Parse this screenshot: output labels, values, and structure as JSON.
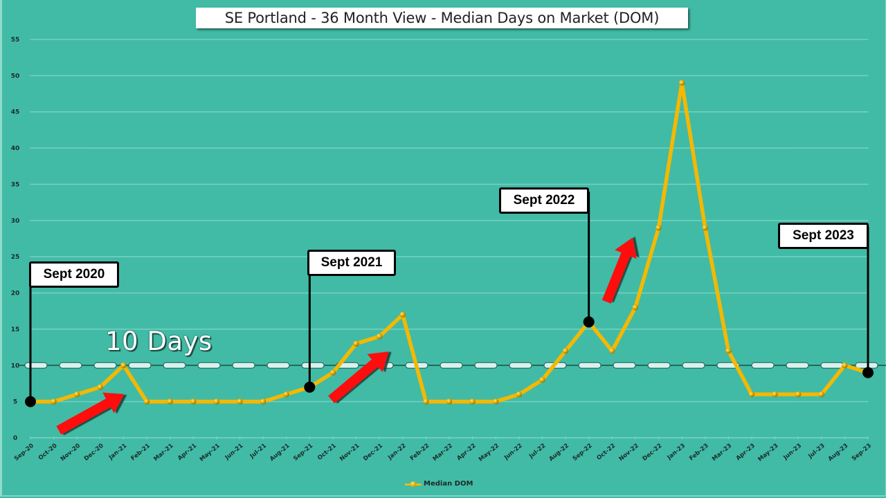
{
  "chart_data": {
    "type": "line",
    "title": "SE Portland - 36 Month View - Median Days on Market (DOM)",
    "xlabel": "",
    "ylabel": "",
    "ylim": [
      0,
      55
    ],
    "yticks": [
      0,
      5,
      10,
      15,
      20,
      25,
      30,
      35,
      40,
      45,
      50,
      55
    ],
    "grid": true,
    "legend_position": "bottom",
    "categories": [
      "Sep-20",
      "Oct-20",
      "Nov-20",
      "Dec-20",
      "Jan-21",
      "Feb-21",
      "Mar-21",
      "Apr-21",
      "May-21",
      "Jun-21",
      "Jul-21",
      "Aug-21",
      "Sep-21",
      "Oct-21",
      "Nov-21",
      "Dec-21",
      "Jan-22",
      "Feb-22",
      "Mar-22",
      "Apr-22",
      "May-22",
      "Jun-22",
      "Jul-22",
      "Aug-22",
      "Sep-22",
      "Oct-22",
      "Nov-22",
      "Dec-22",
      "Jan-23",
      "Feb-23",
      "Mar-23",
      "Apr-23",
      "May-23",
      "Jun-23",
      "Jul-23",
      "Aug-23",
      "Sep-23"
    ],
    "series": [
      {
        "name": "Median DOM",
        "color": "#f5b800",
        "values": [
          5,
          5,
          6,
          7,
          10,
          5,
          5,
          5,
          5,
          5,
          5,
          6,
          7,
          9,
          13,
          14,
          17,
          5,
          5,
          5,
          5,
          6,
          8,
          12,
          16,
          12,
          18,
          29,
          49,
          29,
          12,
          6,
          6,
          6,
          6,
          10,
          9
        ]
      }
    ],
    "reference_line": {
      "value": 10,
      "label": "10 Days",
      "style": "dashed"
    },
    "annotations": [
      {
        "label": "Sept 2020",
        "category": "Sep-20"
      },
      {
        "label": "Sept 2021",
        "category": "Sep-21"
      },
      {
        "label": "Sept 2022",
        "category": "Sep-22"
      },
      {
        "label": "Sept 2023",
        "category": "Sep-23"
      }
    ],
    "arrows": [
      {
        "near": "Jan-21",
        "direction": "up-right"
      },
      {
        "near": "Dec-21",
        "direction": "up-right"
      },
      {
        "near": "Nov-22",
        "direction": "up"
      }
    ]
  },
  "colors": {
    "background": "#41bba6",
    "line": "#f5b800",
    "grid": "#7fd4c4",
    "arrow": "#ff0a0a",
    "reference_line": "#d8f2ee"
  },
  "legend": {
    "label": "Median DOM"
  }
}
